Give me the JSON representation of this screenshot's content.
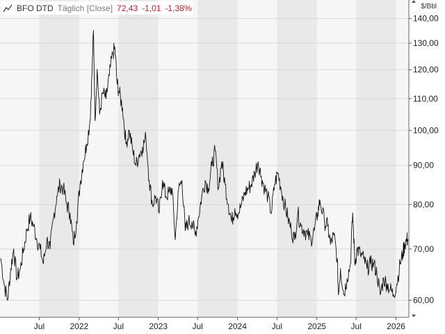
{
  "header": {
    "ticker": "BFO DTD",
    "frequency": "Täglich [Close]",
    "last": "72,43",
    "change": "-1,01",
    "change_pct": "-1,38%",
    "icon": "line-chart-icon"
  },
  "colors": {
    "line": "#111111",
    "band_dark": "#e9e9e9",
    "band_light": "#f6f6f6",
    "grid": "#d7d7d7",
    "negative": "#c8202a"
  },
  "chart_data": {
    "type": "line",
    "title": "",
    "xlabel": "",
    "ylabel": "",
    "unit_label": "$/Bbl",
    "y_scale": "log",
    "ylim": [
      57,
      148
    ],
    "xlim": [
      "2021-01-01",
      "2026-03-01"
    ],
    "grid": true,
    "y_ticks": [
      60,
      70,
      80,
      90,
      100,
      110,
      120,
      130,
      140
    ],
    "y_tick_labels": [
      "60,00",
      "70,00",
      "80,00",
      "90,00",
      "100,00",
      "110,00",
      "120,00",
      "130,00",
      "140,00"
    ],
    "x_ticks": [
      "2021-07-01",
      "2022-01-01",
      "2022-07-01",
      "2023-01-01",
      "2023-07-01",
      "2024-01-01",
      "2024-07-01",
      "2025-01-01",
      "2025-07-01",
      "2026-01-01"
    ],
    "x_tick_labels": [
      "Jul",
      "2022",
      "Jul",
      "2023",
      "Jul",
      "2024",
      "Jul",
      "2025",
      "Jul",
      "2026"
    ],
    "series": [
      {
        "values": [
          [
            "2021-01-05",
            68
          ],
          [
            "2021-01-20",
            63
          ],
          [
            "2021-02-05",
            60
          ],
          [
            "2021-02-20",
            66
          ],
          [
            "2021-03-05",
            70
          ],
          [
            "2021-03-20",
            64
          ],
          [
            "2021-04-05",
            66
          ],
          [
            "2021-04-20",
            70
          ],
          [
            "2021-05-05",
            74
          ],
          [
            "2021-05-20",
            77
          ],
          [
            "2021-06-05",
            75
          ],
          [
            "2021-06-20",
            72
          ],
          [
            "2021-07-05",
            70
          ],
          [
            "2021-07-20",
            67
          ],
          [
            "2021-08-05",
            72
          ],
          [
            "2021-08-20",
            70
          ],
          [
            "2021-09-05",
            77
          ],
          [
            "2021-09-20",
            82
          ],
          [
            "2021-10-05",
            85
          ],
          [
            "2021-10-20",
            84
          ],
          [
            "2021-11-05",
            80
          ],
          [
            "2021-11-20",
            78
          ],
          [
            "2021-12-05",
            71
          ],
          [
            "2021-12-20",
            76
          ],
          [
            "2022-01-05",
            85
          ],
          [
            "2022-01-20",
            91
          ],
          [
            "2022-02-05",
            96
          ],
          [
            "2022-02-20",
            103
          ],
          [
            "2022-03-01",
            118
          ],
          [
            "2022-03-08",
            135
          ],
          [
            "2022-03-15",
            103
          ],
          [
            "2022-03-25",
            120
          ],
          [
            "2022-04-05",
            105
          ],
          [
            "2022-04-20",
            112
          ],
          [
            "2022-05-05",
            110
          ],
          [
            "2022-05-20",
            118
          ],
          [
            "2022-06-05",
            126
          ],
          [
            "2022-06-15",
            128
          ],
          [
            "2022-06-25",
            115
          ],
          [
            "2022-07-05",
            112
          ],
          [
            "2022-07-20",
            107
          ],
          [
            "2022-08-05",
            96
          ],
          [
            "2022-08-20",
            100
          ],
          [
            "2022-09-05",
            94
          ],
          [
            "2022-09-20",
            90
          ],
          [
            "2022-10-05",
            93
          ],
          [
            "2022-10-20",
            95
          ],
          [
            "2022-11-05",
            98
          ],
          [
            "2022-11-20",
            86
          ],
          [
            "2022-12-05",
            80
          ],
          [
            "2022-12-20",
            82
          ],
          [
            "2023-01-05",
            78
          ],
          [
            "2023-01-20",
            86
          ],
          [
            "2023-02-05",
            82
          ],
          [
            "2023-02-20",
            83
          ],
          [
            "2023-03-05",
            84
          ],
          [
            "2023-03-20",
            72
          ],
          [
            "2023-04-05",
            84
          ],
          [
            "2023-04-20",
            86
          ],
          [
            "2023-05-05",
            74
          ],
          [
            "2023-05-20",
            76
          ],
          [
            "2023-06-05",
            76
          ],
          [
            "2023-06-20",
            73
          ],
          [
            "2023-07-05",
            77
          ],
          [
            "2023-07-20",
            82
          ],
          [
            "2023-08-05",
            86
          ],
          [
            "2023-08-20",
            84
          ],
          [
            "2023-09-05",
            90
          ],
          [
            "2023-09-20",
            94
          ],
          [
            "2023-10-05",
            84
          ],
          [
            "2023-10-20",
            91
          ],
          [
            "2023-11-05",
            85
          ],
          [
            "2023-11-20",
            80
          ],
          [
            "2023-12-05",
            76
          ],
          [
            "2023-12-20",
            79
          ],
          [
            "2024-01-05",
            78
          ],
          [
            "2024-01-20",
            80
          ],
          [
            "2024-02-05",
            83
          ],
          [
            "2024-02-20",
            84
          ],
          [
            "2024-03-05",
            85
          ],
          [
            "2024-03-20",
            88
          ],
          [
            "2024-04-05",
            91
          ],
          [
            "2024-04-20",
            87
          ],
          [
            "2024-05-05",
            84
          ],
          [
            "2024-05-20",
            82
          ],
          [
            "2024-06-05",
            78
          ],
          [
            "2024-06-20",
            85
          ],
          [
            "2024-07-05",
            88
          ],
          [
            "2024-07-20",
            84
          ],
          [
            "2024-08-05",
            80
          ],
          [
            "2024-08-20",
            77
          ],
          [
            "2024-09-05",
            74
          ],
          [
            "2024-09-20",
            72
          ],
          [
            "2024-10-05",
            78
          ],
          [
            "2024-10-20",
            75
          ],
          [
            "2024-11-05",
            74
          ],
          [
            "2024-11-20",
            73
          ],
          [
            "2024-12-05",
            72
          ],
          [
            "2024-12-20",
            74
          ],
          [
            "2025-01-05",
            78
          ],
          [
            "2025-01-15",
            81
          ],
          [
            "2025-02-05",
            76
          ],
          [
            "2025-02-20",
            75
          ],
          [
            "2025-03-05",
            71
          ],
          [
            "2025-03-20",
            73
          ],
          [
            "2025-04-05",
            68
          ],
          [
            "2025-04-10",
            61
          ],
          [
            "2025-04-20",
            66
          ],
          [
            "2025-05-05",
            61
          ],
          [
            "2025-05-20",
            64
          ],
          [
            "2025-06-05",
            67
          ],
          [
            "2025-06-15",
            78
          ],
          [
            "2025-06-25",
            67
          ],
          [
            "2025-07-05",
            70
          ],
          [
            "2025-07-20",
            69
          ],
          [
            "2025-08-05",
            68
          ],
          [
            "2025-08-20",
            66
          ],
          [
            "2025-09-05",
            67
          ],
          [
            "2025-09-20",
            67
          ],
          [
            "2025-10-05",
            65
          ],
          [
            "2025-10-20",
            61
          ],
          [
            "2025-11-05",
            64
          ],
          [
            "2025-11-20",
            63
          ],
          [
            "2025-12-05",
            62
          ],
          [
            "2025-12-20",
            61
          ],
          [
            "2026-01-05",
            63
          ],
          [
            "2026-01-20",
            67
          ],
          [
            "2026-02-01",
            69
          ],
          [
            "2026-02-10",
            71
          ],
          [
            "2026-02-20",
            72
          ],
          [
            "2026-02-25",
            72
          ]
        ]
      }
    ]
  }
}
